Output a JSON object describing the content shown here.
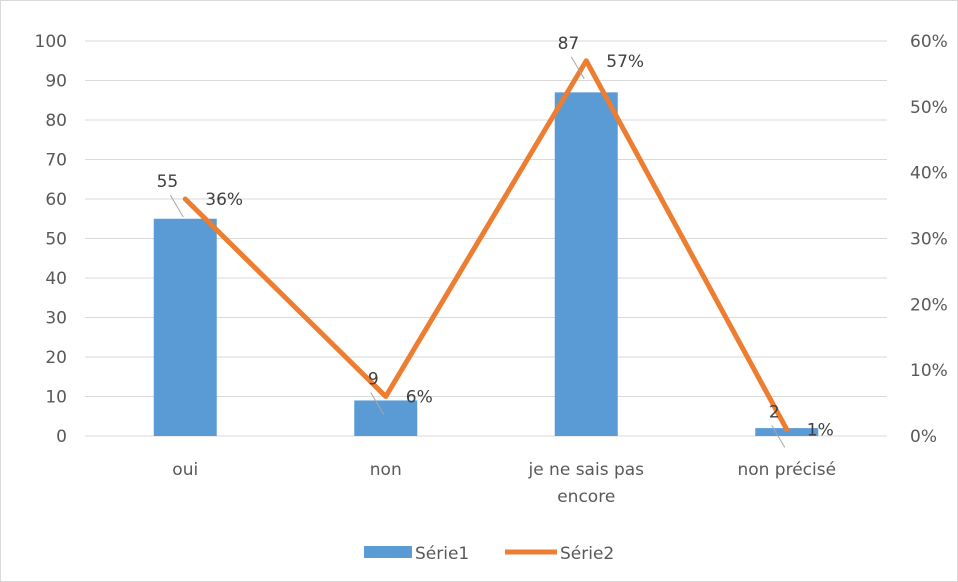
{
  "chart_data": {
    "type": "bar",
    "categories": [
      [
        "oui"
      ],
      [
        "non"
      ],
      [
        "je ne sais pas",
        "encore"
      ],
      [
        "non précisé"
      ]
    ],
    "series": [
      {
        "name": "Série1",
        "type": "bar",
        "axis": "left",
        "values": [
          55,
          9,
          87,
          2
        ],
        "color": "#5b9bd5"
      },
      {
        "name": "Série2",
        "type": "line",
        "axis": "right",
        "values": [
          0.36,
          0.06,
          0.57,
          0.01
        ],
        "color": "#ed7d31"
      }
    ],
    "bar_labels": [
      "55",
      "9",
      "87",
      "2"
    ],
    "line_labels": [
      "36%",
      "6%",
      "57%",
      "1%"
    ],
    "y_left": {
      "min": 0,
      "max": 100,
      "ticks": [
        "0",
        "10",
        "20",
        "30",
        "40",
        "50",
        "60",
        "70",
        "80",
        "90",
        "100"
      ]
    },
    "y_right": {
      "min": 0,
      "max": 0.6,
      "ticks": [
        "0%",
        "10%",
        "20%",
        "30%",
        "40%",
        "50%",
        "60%"
      ]
    },
    "grid": true,
    "legend_position": "bottom"
  }
}
